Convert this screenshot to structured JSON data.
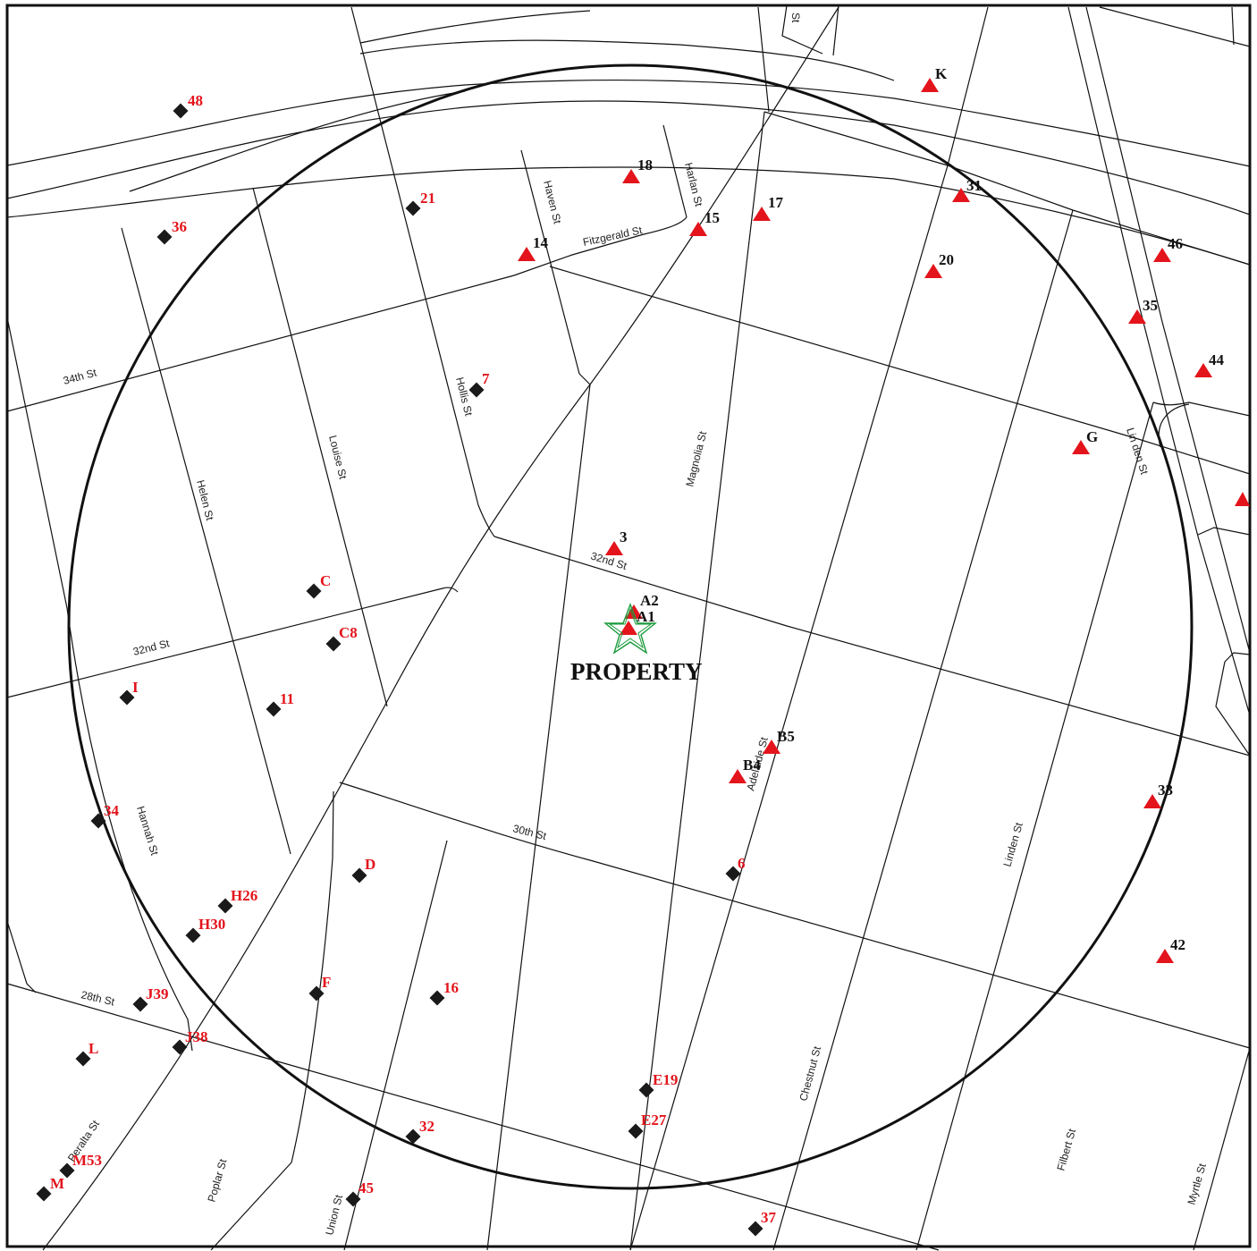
{
  "map": {
    "property_label": "PROPERTY",
    "colors": {
      "diamond": "#1a1a1a",
      "triangle": "#e3141c",
      "red_label": "#e3141c",
      "black_label": "#111111",
      "property_star": "#1a9a3a"
    },
    "marker_types": [
      "diamond-marker",
      "triangle-marker",
      "star-marker"
    ],
    "streets": [
      "Fitzgerald St",
      "Haven St",
      "Harlan St",
      "34th St",
      "Hollis St",
      "Louise St",
      "Helen St",
      "Magnolia St",
      "32nd St",
      "32nd St",
      "Lin den St",
      "Adelaide St",
      "30th St",
      "Hannah St",
      "Linden St",
      "28th St",
      "Chestnut St",
      "Peralta St",
      "Poplar St",
      "Union St",
      "Filbert St",
      "Myrtle St",
      "St"
    ],
    "sites": [
      "48",
      "36",
      "21",
      "7",
      "C",
      "C8",
      "I",
      "11",
      "34",
      "D",
      "H26",
      "H30",
      "J39",
      "J38",
      "F",
      "16",
      "L",
      "M53",
      "M",
      "32",
      "45",
      "E19",
      "E27",
      "6",
      "37",
      "K",
      "18",
      "17",
      "15",
      "14",
      "31",
      "20",
      "46",
      "35",
      "44",
      "G",
      "3",
      "A2",
      "A1",
      "B5",
      "B4",
      "33",
      "42"
    ]
  }
}
